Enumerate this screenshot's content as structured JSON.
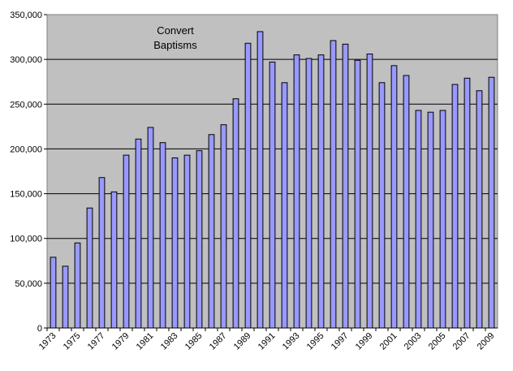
{
  "chart_data": {
    "type": "bar",
    "title_lines": [
      "Convert",
      "Baptisms"
    ],
    "xlabel": "",
    "ylabel": "",
    "ylim": [
      0,
      350000
    ],
    "yticks": [
      0,
      50000,
      100000,
      150000,
      200000,
      250000,
      300000,
      350000
    ],
    "ytick_labels": [
      "0",
      "50,000",
      "100,000",
      "150,000",
      "200,000",
      "250,000",
      "300,000",
      "350,000"
    ],
    "grid": true,
    "legend": "none",
    "categories": [
      "1973",
      "1974",
      "1975",
      "1976",
      "1977",
      "1978",
      "1979",
      "1980",
      "1981",
      "1982",
      "1983",
      "1984",
      "1985",
      "1986",
      "1987",
      "1988",
      "1989",
      "1990",
      "1991",
      "1992",
      "1993",
      "1994",
      "1995",
      "1996",
      "1997",
      "1998",
      "1999",
      "2000",
      "2001",
      "2002",
      "2003",
      "2004",
      "2005",
      "2006",
      "2007",
      "2008",
      "2009"
    ],
    "x_tick_labels_shown": [
      "1973",
      "1975",
      "1977",
      "1979",
      "1981",
      "1983",
      "1985",
      "1987",
      "1989",
      "1991",
      "1993",
      "1995",
      "1997",
      "1999",
      "2001",
      "2003",
      "2005",
      "2007",
      "2009"
    ],
    "values": [
      79000,
      69000,
      95000,
      134000,
      168000,
      152000,
      193000,
      211000,
      224000,
      207000,
      190000,
      193000,
      198000,
      216000,
      227000,
      256000,
      318000,
      331000,
      297000,
      274000,
      305000,
      301000,
      305000,
      321000,
      317000,
      299000,
      306000,
      274000,
      293000,
      282000,
      243000,
      241000,
      243000,
      272000,
      279000,
      265000,
      280000
    ],
    "colors": {
      "bar_fill": "#9999ff",
      "bar_stroke": "#000000",
      "plot_background": "#c0c0c0",
      "gridline": "#000000"
    }
  }
}
